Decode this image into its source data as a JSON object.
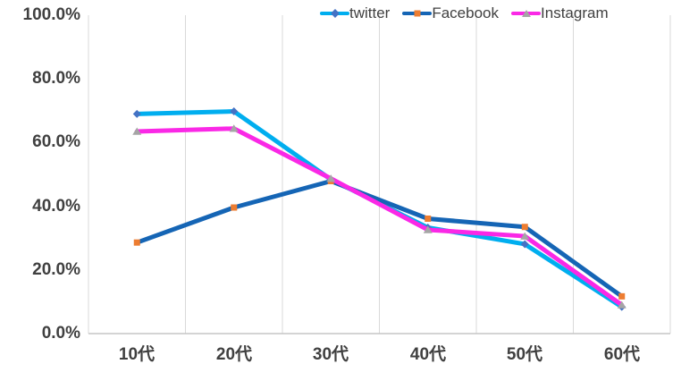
{
  "chart_data": {
    "type": "line",
    "title": "",
    "categories": [
      "10代",
      "20代",
      "30代",
      "40代",
      "50代",
      "60代"
    ],
    "series": [
      {
        "name": "twitter",
        "values": [
          69.0,
          69.8,
          48.4,
          33.3,
          28.1,
          8.4
        ],
        "line_color": "#00AEEF",
        "marker": "diamond",
        "marker_color": "#4472C4"
      },
      {
        "name": "Facebook",
        "values": [
          28.6,
          39.6,
          47.9,
          36.1,
          33.5,
          11.7
        ],
        "line_color": "#1565B5",
        "marker": "square",
        "marker_color": "#ED7D31"
      },
      {
        "name": "Instagram",
        "values": [
          63.5,
          64.4,
          48.7,
          32.6,
          30.6,
          9.0
        ],
        "line_color": "#FA28E6",
        "marker": "triangle",
        "marker_color": "#A5A5A5"
      }
    ],
    "y_ticks": [
      "100.0%",
      "80.0%",
      "60.0%",
      "40.0%",
      "20.0%",
      "0.0%"
    ],
    "ylim": [
      0,
      100
    ],
    "y_axis_format": "percent",
    "grid": "vertical-only",
    "legend_position": "top-right"
  },
  "colors": {
    "background": "#FFFFFF",
    "gridline": "#D9D9D9",
    "axis_line": "#C6C6C6",
    "label_text": "#404040"
  }
}
